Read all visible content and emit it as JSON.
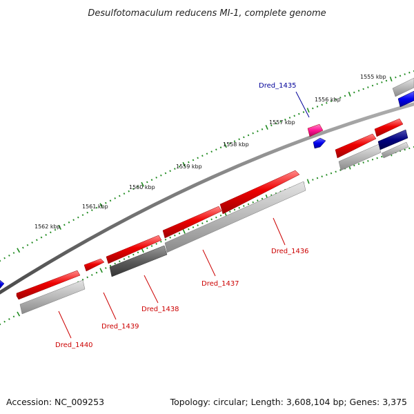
{
  "title": "Desulfotomaculum reducens MI-1, complete genome",
  "footer": {
    "accession": "Accession: NC_009253",
    "topology": "Topology: circular; Length: 3,608,104 bp; Genes: 3,375"
  },
  "colors": {
    "backbone": "#7c7c7c",
    "tick": "#1f8a1f",
    "gene_red": "#ee0000",
    "gene_gray": "#b4b4b4",
    "gene_darkgray": "#5e5e5e",
    "gene_blue": "#0000ee",
    "gene_navy": "#000080",
    "gene_pink": "#ff1493",
    "label_red": "#cc0000",
    "label_blue": "#000099"
  },
  "scale_labels": [
    "1555 kbp",
    "1556 kbp",
    "1557 kbp",
    "1558 kbp",
    "1559 kbp",
    "1560 kbp",
    "1561 kbp",
    "1562 kbp"
  ],
  "gene_labels": [
    {
      "id": "dred1435",
      "text": "Dred_1435",
      "color": "blue"
    },
    {
      "id": "dred1436",
      "text": "Dred_1436",
      "color": "red"
    },
    {
      "id": "dred1437",
      "text": "Dred_1437",
      "color": "red"
    },
    {
      "id": "dred1438",
      "text": "Dred_1438",
      "color": "red"
    },
    {
      "id": "dred1439",
      "text": "Dred_1439",
      "color": "red"
    },
    {
      "id": "dred1440",
      "text": "Dred_1440",
      "color": "red"
    }
  ]
}
